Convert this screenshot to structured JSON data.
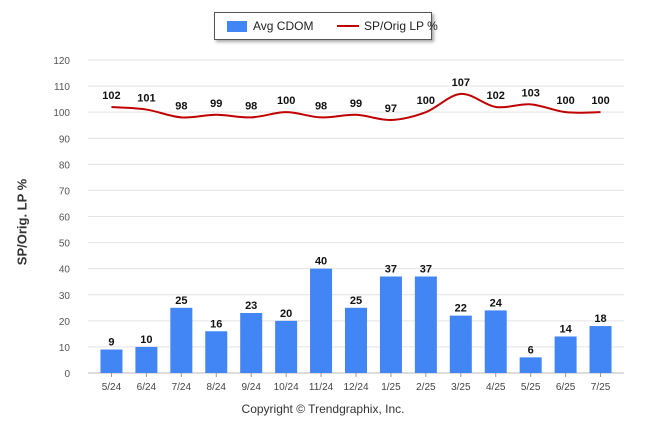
{
  "chart_data": {
    "type": "bar",
    "categories": [
      "5/24",
      "6/24",
      "7/24",
      "8/24",
      "9/24",
      "10/24",
      "11/24",
      "12/24",
      "1/25",
      "2/25",
      "3/25",
      "4/25",
      "5/25",
      "6/25",
      "7/25"
    ],
    "series": [
      {
        "name": "Avg CDOM",
        "type": "bar",
        "color": "#4285f4",
        "values": [
          9,
          10,
          25,
          16,
          23,
          20,
          40,
          25,
          37,
          37,
          22,
          24,
          6,
          14,
          18
        ]
      },
      {
        "name": "SP/Orig LP %",
        "type": "line",
        "color": "#c00000",
        "values": [
          102,
          101,
          98,
          99,
          98,
          100,
          98,
          99,
          97,
          100,
          107,
          102,
          103,
          100,
          100
        ]
      }
    ],
    "ylabel": "SP/Orig. LP %",
    "ylim": [
      0,
      120
    ],
    "yticks": [
      0,
      10,
      20,
      30,
      40,
      50,
      60,
      70,
      80,
      90,
      100,
      110,
      120
    ],
    "grid": true,
    "legend_position": "top-center"
  },
  "footer": {
    "copyright": "Copyright © Trendgraphix, Inc."
  }
}
